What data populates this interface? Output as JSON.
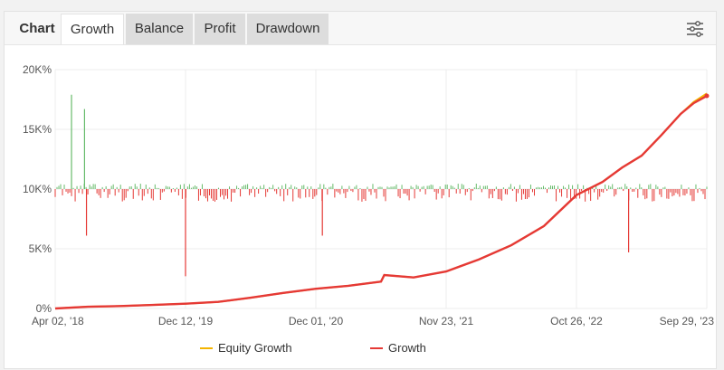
{
  "tabs": {
    "title": "Chart",
    "items": [
      {
        "label": "Growth",
        "active": true
      },
      {
        "label": "Balance",
        "active": false
      },
      {
        "label": "Profit",
        "active": false
      },
      {
        "label": "Drawdown",
        "active": false
      }
    ]
  },
  "settings_icon": "sliders-icon",
  "colors": {
    "growth": "#e53935",
    "equity": "#f4b400",
    "deposit_bar_up": "#66bb6a",
    "deposit_bar_down": "#e53935",
    "grid": "#ececec",
    "axis_text": "#555555"
  },
  "chart_data": {
    "type": "line",
    "y_ticks": [
      "0%",
      "5K%",
      "10K%",
      "15K%",
      "20K%"
    ],
    "ylim": [
      0,
      20000
    ],
    "x_ticks": [
      "Apr 02, '18",
      "Dec 12, '19",
      "Dec 01, '20",
      "Nov 23, '21",
      "Oct 26, '22",
      "Sep 29, '23"
    ],
    "series": [
      {
        "name": "Growth",
        "x": [
          0,
          0.05,
          0.1,
          0.15,
          0.2,
          0.25,
          0.3,
          0.35,
          0.4,
          0.45,
          0.5,
          0.505,
          0.55,
          0.6,
          0.65,
          0.7,
          0.75,
          0.8,
          0.84,
          0.87,
          0.9,
          0.93,
          0.96,
          0.98,
          1.0
        ],
        "values": [
          0,
          150,
          200,
          300,
          400,
          550,
          900,
          1300,
          1650,
          1900,
          2250,
          2800,
          2600,
          3100,
          4100,
          5300,
          6900,
          9500,
          10600,
          11800,
          12800,
          14500,
          16300,
          17200,
          17800
        ]
      },
      {
        "name": "Equity Growth",
        "x": [
          0,
          0.05,
          0.1,
          0.15,
          0.2,
          0.25,
          0.3,
          0.35,
          0.4,
          0.45,
          0.5,
          0.505,
          0.55,
          0.6,
          0.65,
          0.7,
          0.75,
          0.8,
          0.84,
          0.87,
          0.9,
          0.93,
          0.96,
          0.98,
          1.0
        ],
        "values": [
          0,
          150,
          200,
          300,
          400,
          550,
          900,
          1300,
          1650,
          1900,
          2250,
          2800,
          2600,
          3100,
          4100,
          5300,
          6900,
          9500,
          10600,
          11800,
          12800,
          14500,
          16300,
          17300,
          18000
        ]
      }
    ],
    "trade_spikes": [
      {
        "x": 0.025,
        "value": 17900
      },
      {
        "x": 0.045,
        "value": 16700
      },
      {
        "x": 0.048,
        "value": 6100
      },
      {
        "x": 0.2,
        "value": 2700
      },
      {
        "x": 0.41,
        "value": 6100
      },
      {
        "x": 0.88,
        "value": 4700
      }
    ]
  },
  "legend": {
    "items": [
      {
        "label": "Equity Growth",
        "color": "#f4b400"
      },
      {
        "label": "Growth",
        "color": "#e53935"
      }
    ]
  }
}
